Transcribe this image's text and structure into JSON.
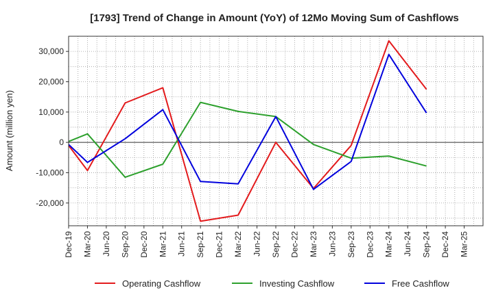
{
  "chart_data": {
    "type": "line",
    "title": "[1793]  Trend of Change in Amount (YoY) of 12Mo Moving Sum of Cashflows",
    "xlabel": "",
    "ylabel": "Amount (million yen)",
    "ylim": [
      -27500,
      35000
    ],
    "yticks": [
      -20000,
      -10000,
      0,
      10000,
      20000,
      30000
    ],
    "ytick_labels": [
      "-20,000",
      "-10,000",
      "0",
      "10,000",
      "20,000",
      "30,000"
    ],
    "categories": [
      "Dec-19",
      "Mar-20",
      "Jun-20",
      "Sep-20",
      "Dec-20",
      "Mar-21",
      "Jun-21",
      "Sep-21",
      "Dec-21",
      "Mar-22",
      "Jun-22",
      "Sep-22",
      "Dec-22",
      "Mar-23",
      "Jun-23",
      "Sep-23",
      "Dec-23",
      "Mar-24",
      "Jun-24",
      "Sep-24",
      "Dec-24",
      "Mar-25"
    ],
    "grid": true,
    "legend_position": "bottom",
    "series": [
      {
        "name": "Operating Cashflow",
        "color": "#e31a1c",
        "values": [
          -1000,
          -9300,
          null,
          13000,
          null,
          18000,
          null,
          -26000,
          null,
          -24000,
          null,
          0,
          null,
          -15200,
          null,
          -1000,
          null,
          33500,
          null,
          17500,
          null,
          null
        ]
      },
      {
        "name": "Investing Cashflow",
        "color": "#2ca02c",
        "values": [
          300,
          2800,
          null,
          -11500,
          null,
          -7200,
          null,
          13200,
          null,
          10200,
          null,
          8500,
          null,
          -700,
          null,
          -5200,
          null,
          -4500,
          null,
          -7800,
          null,
          null
        ]
      },
      {
        "name": "Free Cashflow",
        "color": "#0000dd",
        "values": [
          -700,
          -6600,
          null,
          1200,
          null,
          10800,
          null,
          -12900,
          null,
          -13700,
          null,
          8500,
          null,
          -15500,
          null,
          -6300,
          null,
          29000,
          null,
          9700,
          null,
          null
        ]
      }
    ]
  }
}
